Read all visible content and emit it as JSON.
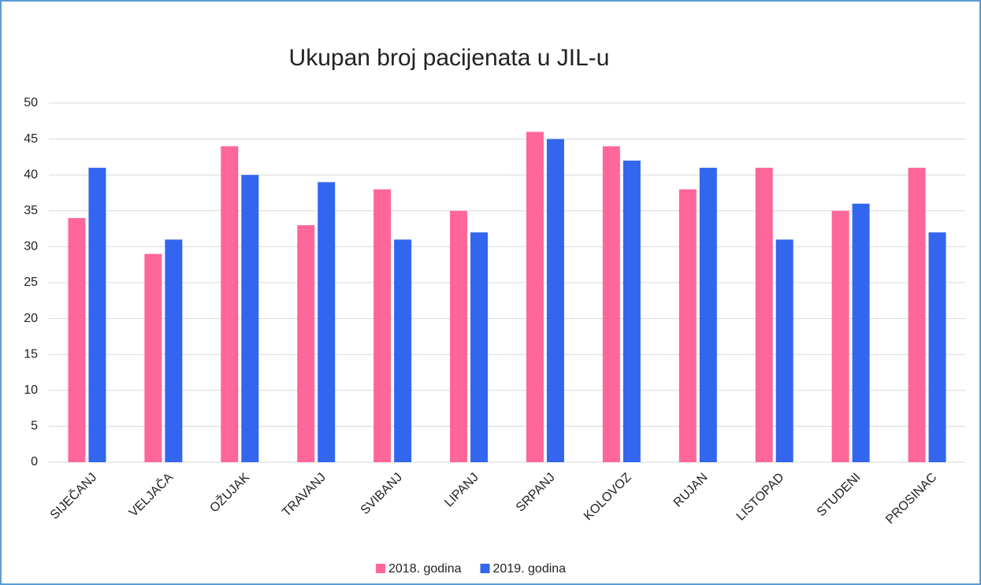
{
  "chart_data": {
    "type": "bar",
    "title": "Ukupan broj pacijenata u JIL-u",
    "categories": [
      "SIJEČANJ",
      "VELJAČA",
      "OŽUJAK",
      "TRAVANJ",
      "SVIBANJ",
      "LIPANJ",
      "SRPANJ",
      "KOLOVOZ",
      "RUJAN",
      "LISTOPAD",
      "STUDENI",
      "PROSINAC"
    ],
    "series": [
      {
        "name": "2018. godina",
        "color": "#ff6699",
        "values": [
          34,
          29,
          44,
          33,
          38,
          35,
          46,
          44,
          38,
          41,
          35,
          41
        ]
      },
      {
        "name": "2019. godina",
        "color": "#3366ee",
        "values": [
          41,
          31,
          40,
          39,
          31,
          32,
          45,
          42,
          41,
          31,
          36,
          32
        ]
      }
    ],
    "ylim": [
      0,
      50
    ],
    "yticks": [
      0,
      5,
      10,
      15,
      20,
      25,
      30,
      35,
      40,
      45,
      50
    ],
    "grid": true,
    "legend": "bottom"
  }
}
